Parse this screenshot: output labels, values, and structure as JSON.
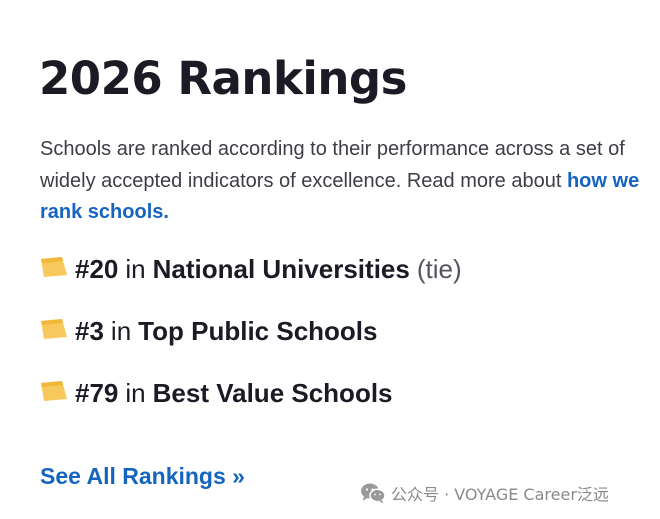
{
  "page": {
    "title": "2026 Rankings",
    "intro_text": "Schools are ranked according to their performance across a set of widely accepted indicators of excellence. Read more about",
    "intro_link": "how we rank schools."
  },
  "rankings": [
    {
      "rank": "#20",
      "connector": "in",
      "list": "National Universities",
      "note": "(tie)",
      "icon": "rank-flag-icon"
    },
    {
      "rank": "#3",
      "connector": "in",
      "list": "Top Public Schools",
      "note": "",
      "icon": "rank-flag-icon"
    },
    {
      "rank": "#79",
      "connector": "in",
      "list": "Best Value Schools",
      "note": "",
      "icon": "rank-flag-icon"
    }
  ],
  "see_all_label": "See All Rankings »",
  "watermark": {
    "icon": "wechat-icon",
    "text": "公众号 · VOYAGE Career泛远"
  },
  "colors": {
    "title": "#1b1b25",
    "body_text": "#3d3d46",
    "link": "#1565c0",
    "flag": "#f7c95c",
    "watermark": "#8a8a8a"
  }
}
